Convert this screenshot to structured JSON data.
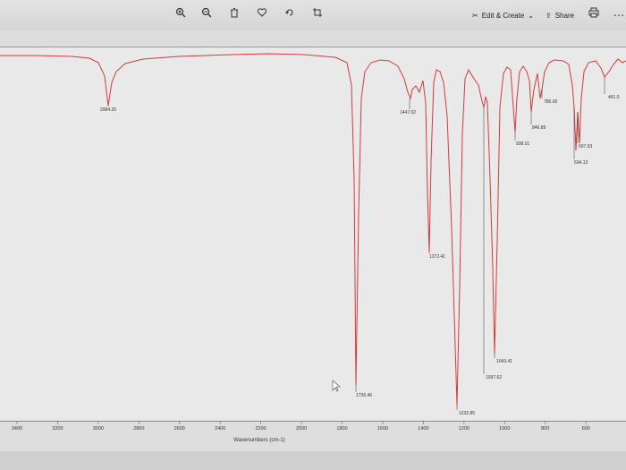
{
  "toolbar": {
    "icons": [
      "zoom-in-icon",
      "zoom-out-icon",
      "delete-icon",
      "heart-icon",
      "rotate-icon",
      "crop-icon"
    ],
    "edit_create_label": "Edit & Create",
    "share_label": "Share"
  },
  "chart_data": {
    "type": "line",
    "xlabel": "Wavenumbers (cm-1)",
    "ylabel": "",
    "xlim": [
      3550,
      400
    ],
    "x_ticks": [
      3400,
      3200,
      3000,
      2800,
      2600,
      2400,
      2200,
      2000,
      1800,
      1600,
      1400,
      1200,
      1000,
      800,
      600
    ],
    "series": [
      {
        "color": "#d43a3a"
      }
    ],
    "peaks": [
      {
        "x": 2984.25,
        "label": "2984.25"
      },
      {
        "x": 1736.46,
        "label": "1736.46"
      },
      {
        "x": 1447.02,
        "label": "1447.02"
      },
      {
        "x": 1372.41,
        "label": "1372.41"
      },
      {
        "x": 1232.85,
        "label": "1232.85"
      },
      {
        "x": 1097.62,
        "label": "1097.62"
      },
      {
        "x": 1043.41,
        "label": "1043.41"
      },
      {
        "x": 938.01,
        "label": "938.01"
      },
      {
        "x": 846.89,
        "label": "846.89"
      },
      {
        "x": 786.0,
        "label": "786.00"
      },
      {
        "x": 634.13,
        "label": "634.13"
      },
      {
        "x": 607.53,
        "label": "607.53"
      },
      {
        "x": 461.0,
        "label": "461.0"
      }
    ]
  }
}
